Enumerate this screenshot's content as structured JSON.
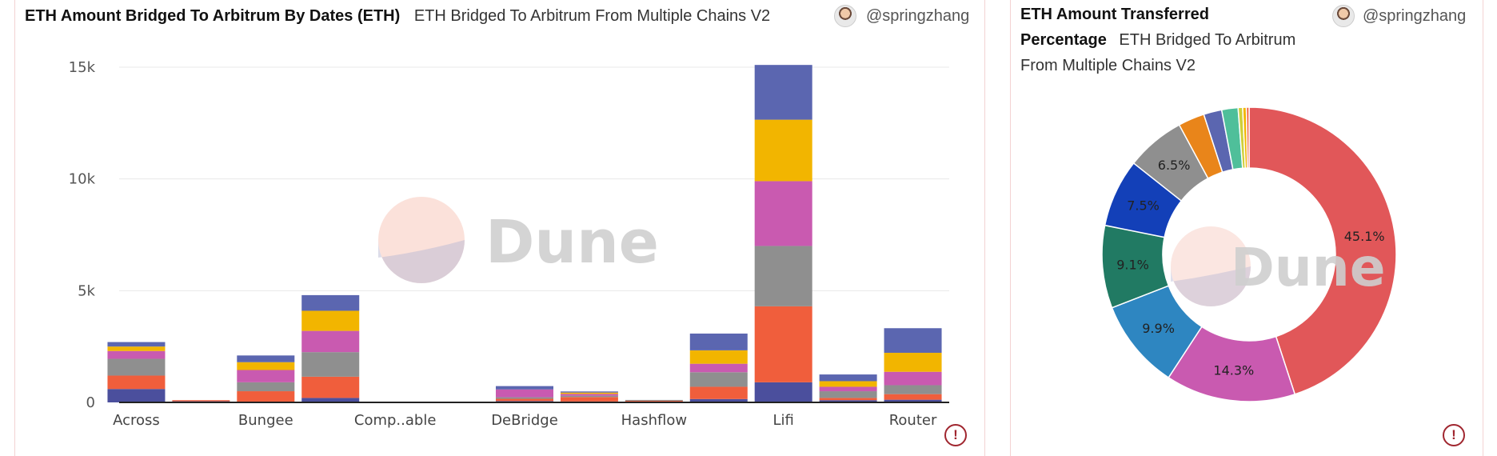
{
  "watermark": "Dune",
  "bar_panel": {
    "title": "ETH Amount Bridged To Arbitrum By Dates (ETH)",
    "subtitle": "ETH Bridged To Arbitrum From Multiple Chains V2",
    "author": "@springzhang"
  },
  "pie_panel": {
    "title_line1": "ETH Amount Transferred",
    "title_line2": "Percentage",
    "subtitle_a": "ETH Bridged To Arbitrum",
    "subtitle_b": "From Multiple Chains V2",
    "author": "@springzhang"
  },
  "chart_data": [
    {
      "type": "bar",
      "stacked": true,
      "categories": [
        "Across",
        "",
        "Bungee",
        "",
        "Comp..able",
        "",
        "DeBridge",
        "",
        "Hashflow",
        "",
        "Lifi",
        "",
        "Router"
      ],
      "tick_labels": [
        "Across",
        "Bungee",
        "Comp..able",
        "DeBridge",
        "Hashflow",
        "Lifi",
        "Router"
      ],
      "yticks": [
        "0",
        "5k",
        "10k",
        "15k"
      ],
      "ylim": [
        0,
        15500
      ],
      "grid": true,
      "colors": [
        "#4b4f9d",
        "#f05e3c",
        "#8f8f8f",
        "#c95ab0",
        "#f2b500",
        "#5b66b0"
      ],
      "series": [
        {
          "values": [
            600,
            50,
            0,
            200,
            0,
            0,
            60,
            40,
            20,
            150,
            900,
            100,
            120
          ]
        },
        {
          "values": [
            600,
            50,
            500,
            950,
            0,
            0,
            100,
            200,
            60,
            550,
            3400,
            100,
            250
          ]
        },
        {
          "values": [
            750,
            0,
            400,
            1100,
            0,
            0,
            70,
            60,
            30,
            650,
            2700,
            300,
            400
          ]
        },
        {
          "values": [
            350,
            0,
            550,
            950,
            0,
            0,
            350,
            80,
            0,
            380,
            2900,
            200,
            600
          ]
        },
        {
          "values": [
            200,
            0,
            350,
            900,
            0,
            0,
            0,
            60,
            0,
            600,
            2750,
            250,
            850
          ]
        },
        {
          "values": [
            200,
            0,
            300,
            700,
            0,
            0,
            150,
            50,
            0,
            750,
            2450,
            300,
            1100
          ]
        }
      ]
    },
    {
      "type": "pie",
      "donut": true,
      "slices": [
        {
          "value": 45.1,
          "label": "45.1%",
          "color": "#e15759"
        },
        {
          "value": 14.3,
          "label": "14.3%",
          "color": "#c95ab0"
        },
        {
          "value": 9.9,
          "label": "9.9%",
          "color": "#2e86c1"
        },
        {
          "value": 9.1,
          "label": "9.1%",
          "color": "#217a63"
        },
        {
          "value": 7.5,
          "label": "7.5%",
          "color": "#1340b8"
        },
        {
          "value": 6.5,
          "label": "6.5%",
          "color": "#8f8f8f"
        },
        {
          "value": 2.9,
          "label": "",
          "color": "#e9851a"
        },
        {
          "value": 2.0,
          "label": "",
          "color": "#5b66b0"
        },
        {
          "value": 1.8,
          "label": "",
          "color": "#4fbf9a"
        },
        {
          "value": 0.5,
          "label": "",
          "color": "#cfcf3a"
        },
        {
          "value": 0.4,
          "label": "",
          "color": "#f2b500"
        },
        {
          "value": 0.3,
          "label": "",
          "color": "#f05e3c"
        }
      ]
    }
  ]
}
